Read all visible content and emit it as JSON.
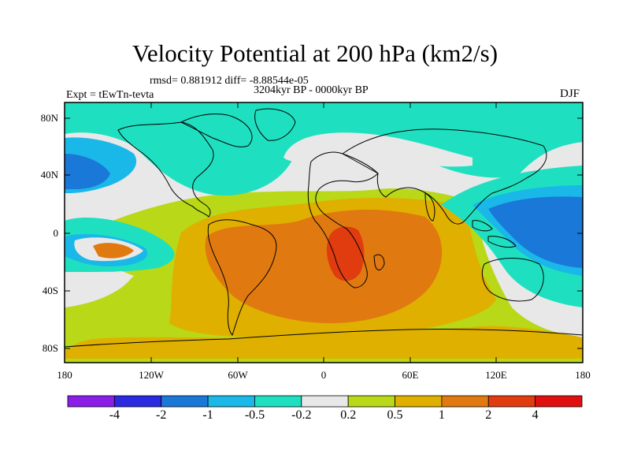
{
  "header": {
    "title": "Velocity Potential at 200 hPa (km2/s)",
    "stats": "rmsd= 0.881912 diff= -8.88544e-05",
    "period": "3204kyr BP - 0000kyr BP",
    "experiment": "Expt = tEwTn-tevta",
    "season": "DJF"
  },
  "map": {
    "lat_ticks": [
      "80N",
      "40N",
      "0",
      "40S",
      "80S"
    ],
    "lon_ticks": [
      "180",
      "120W",
      "60W",
      "0",
      "60E",
      "120E",
      "180"
    ]
  },
  "colorbar": {
    "labels": [
      "-4",
      "-2",
      "-1",
      "-0.5",
      "-0.2",
      "0.2",
      "0.5",
      "1",
      "2",
      "4"
    ],
    "colors": [
      "#8a1ee8",
      "#2a2ae0",
      "#1a78d8",
      "#1ab8e8",
      "#1ee0c0",
      "#e8e8e8",
      "#b8d818",
      "#e0b000",
      "#e07a10",
      "#e03c10",
      "#e01010"
    ]
  }
}
